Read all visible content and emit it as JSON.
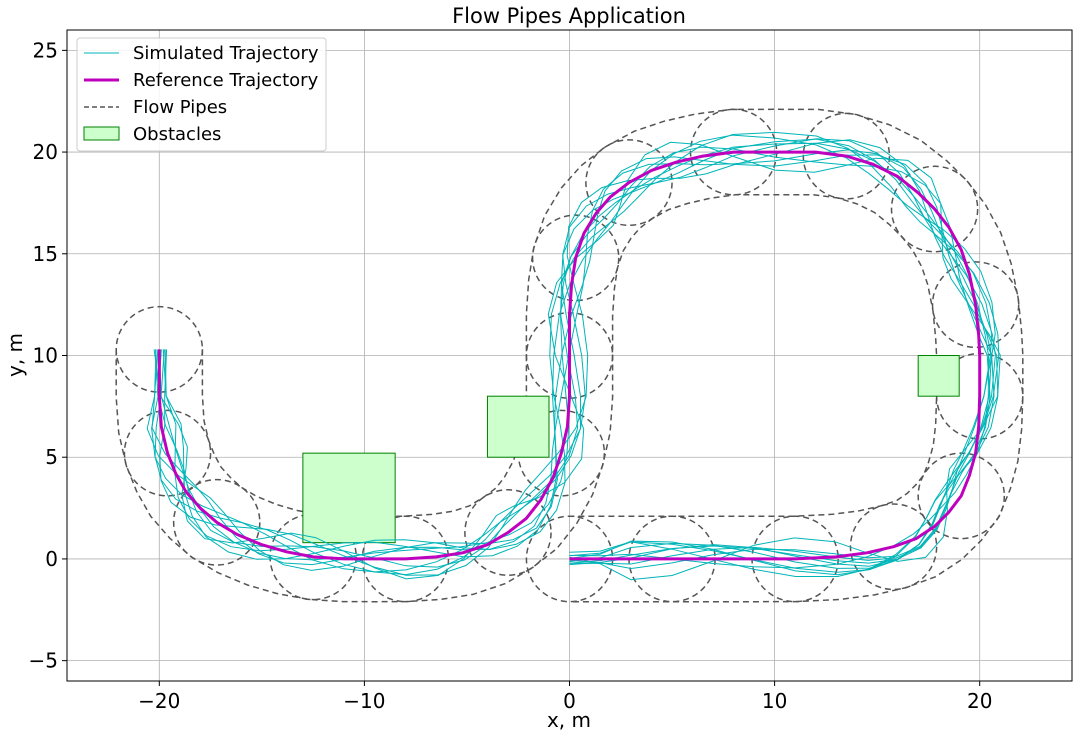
{
  "chart_data": {
    "type": "line",
    "title": "Flow Pipes Application",
    "xlabel": "x, m",
    "ylabel": "y, m",
    "xlim": [
      -24.5,
      24.5
    ],
    "ylim": [
      -6,
      26
    ],
    "xticks": [
      -20,
      -10,
      0,
      10,
      20
    ],
    "yticks": [
      -5,
      0,
      5,
      10,
      15,
      20,
      25
    ],
    "xtick_labels": [
      "−20",
      "−10",
      "0",
      "10",
      "20"
    ],
    "ytick_labels": [
      "−5",
      "0",
      "5",
      "10",
      "15",
      "20",
      "25"
    ],
    "grid": true,
    "legend_position": "top-left",
    "colors": {
      "simulated": "#00b5b8",
      "reference": "#bf00bf",
      "flow_pipes": "#555555",
      "obstacle_fill": "#ccffcc",
      "obstacle_edge": "#008000"
    },
    "legend": [
      "Simulated Trajectory",
      "Reference Trajectory",
      "Flow Pipes",
      "Obstacles"
    ],
    "reference_trajectory": {
      "name": "Reference Trajectory",
      "x": [
        -20,
        -20,
        -19.9,
        -19.6,
        -19.2,
        -18.7,
        -18,
        -17.2,
        -16.2,
        -15,
        -13.8,
        -12.5,
        -11,
        -9.5,
        -8,
        -6.5,
        -5.2,
        -4,
        -3,
        -2.1,
        -1.4,
        -0.8,
        -0.4,
        -0.1,
        0,
        0,
        0,
        0.1,
        0.3,
        0.7,
        1.3,
        2,
        2.9,
        4,
        5.2,
        6.5,
        8,
        10,
        12,
        13.5,
        14.8,
        16,
        17,
        17.8,
        18.5,
        19.1,
        19.5,
        19.8,
        19.95,
        20,
        20,
        19.95,
        19.8,
        19.5,
        19.1,
        18.5,
        17.8,
        16.9,
        15.8,
        14.5,
        13,
        11,
        9,
        7,
        5,
        3,
        1.5,
        0
      ],
      "y": [
        10.3,
        8,
        6.5,
        5.2,
        4.2,
        3.3,
        2.5,
        1.8,
        1.2,
        0.7,
        0.35,
        0.1,
        0,
        0,
        0,
        0.1,
        0.3,
        0.7,
        1.3,
        2,
        2.9,
        4,
        5.2,
        6.5,
        8,
        10,
        12,
        13.5,
        14.8,
        16,
        17,
        17.8,
        18.5,
        19.1,
        19.5,
        19.8,
        20,
        20,
        20,
        19.8,
        19.4,
        18.8,
        18,
        17.2,
        16.3,
        15.2,
        14,
        12.5,
        11,
        10,
        8,
        6.5,
        5.2,
        4.1,
        3.1,
        2.3,
        1.6,
        1,
        0.6,
        0.3,
        0.1,
        0,
        0,
        0,
        0,
        0,
        0,
        0
      ]
    },
    "obstacles": [
      {
        "x": [
          -13,
          -8.5
        ],
        "y": [
          0.8,
          5.2
        ]
      },
      {
        "x": [
          -4,
          -1
        ],
        "y": [
          5,
          8
        ]
      },
      {
        "x": [
          17,
          19
        ],
        "y": [
          8,
          10
        ]
      }
    ],
    "flow_pipe_circle_radius": 2.1,
    "simulated_trajectory_count": 10,
    "simulated_spread": 1.1
  }
}
